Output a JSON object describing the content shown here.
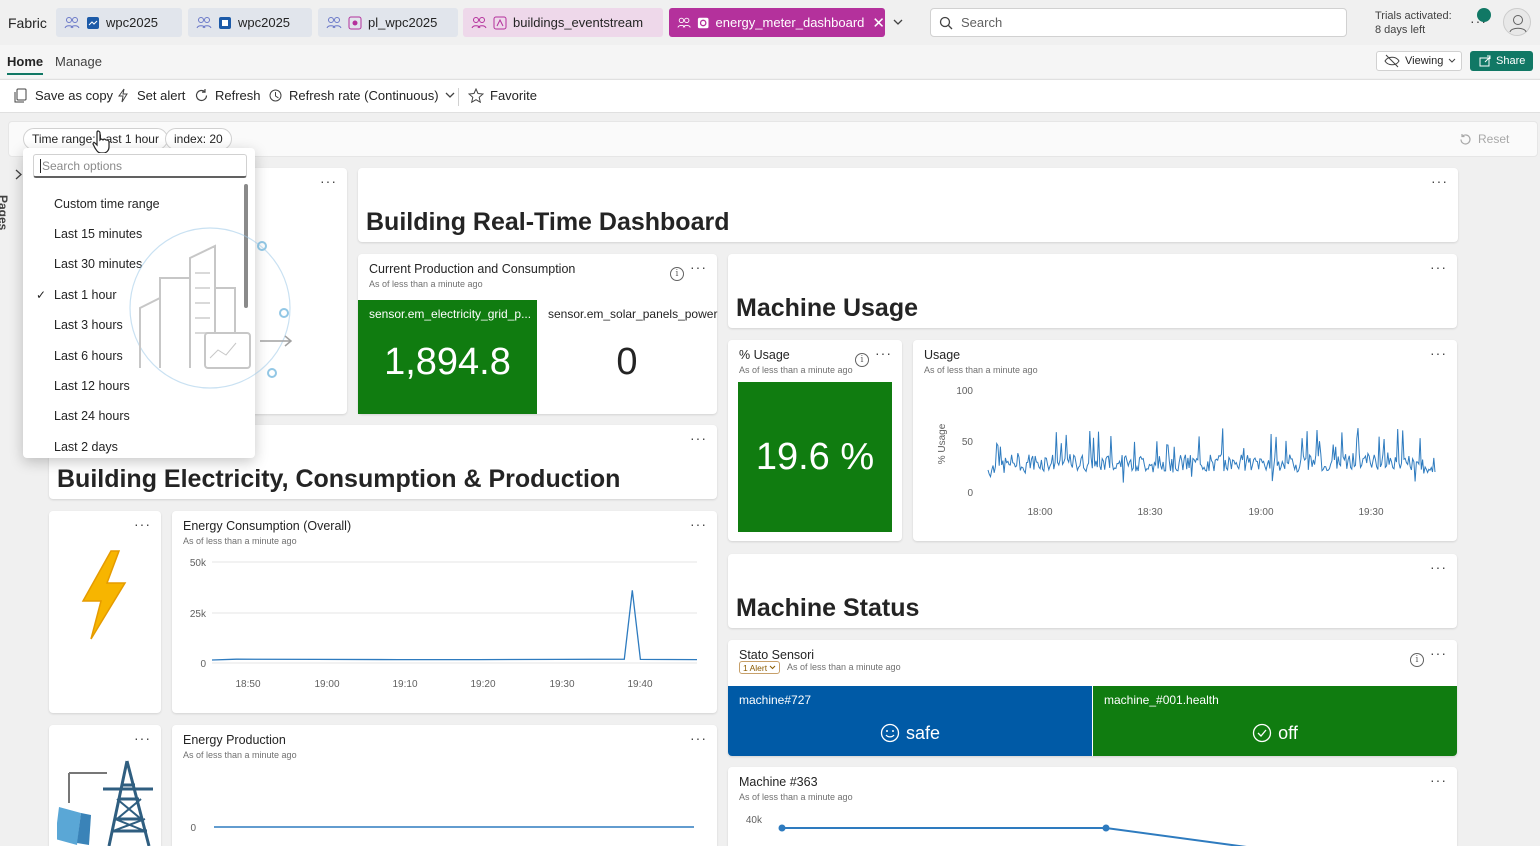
{
  "topbar": {
    "brand": "Fabric",
    "tabs": [
      {
        "label": "wpc2025"
      },
      {
        "label": "wpc2025"
      },
      {
        "label": "pl_wpc2025"
      },
      {
        "label": "buildings_eventstream"
      },
      {
        "label": "energy_meter_dashboard",
        "close": "✕"
      }
    ],
    "search_placeholder": "Search",
    "trial_line1": "Trials activated:",
    "trial_line2": "8 days left"
  },
  "menubar": {
    "home": "Home",
    "manage": "Manage",
    "viewing": "Viewing",
    "share": "Share"
  },
  "toolbar": {
    "save_as_copy": "Save as copy",
    "set_alert": "Set alert",
    "refresh": "Refresh",
    "refresh_rate": "Refresh rate (Continuous)",
    "favorite": "Favorite"
  },
  "filters": {
    "time_range": "Time range: Last 1 hour",
    "index": "index: 20",
    "reset": "Reset"
  },
  "pages_label": "Pages",
  "dropdown": {
    "search_placeholder": "Search options",
    "options": [
      "Custom time range",
      "Last 15 minutes",
      "Last 30 minutes",
      "Last 1 hour",
      "Last 3 hours",
      "Last 6 hours",
      "Last 12 hours",
      "Last 24 hours",
      "Last 2 days"
    ],
    "selected": "Last 1 hour",
    "checkmark": "✓"
  },
  "headers": {
    "building_realtime": "Building Real-Time Dashboard",
    "machine_usage": "Machine Usage",
    "building_electricity": "Building Electricity, Consumption & Production",
    "machine_status": "Machine Status"
  },
  "current_production": {
    "title": "Current Production and Consumption",
    "subtitle": "As of less than a minute ago",
    "tile1_label": "sensor.em_electricity_grid_p...",
    "tile1_value": "1,894.8",
    "tile2_label": "sensor.em_solar_panels_power",
    "tile2_value": "0"
  },
  "pct_usage": {
    "title": "% Usage",
    "subtitle": "As of less than a minute ago",
    "value": "19.6 %"
  },
  "usage_chart": {
    "title": "Usage",
    "subtitle": "As of less than a minute ago",
    "ylabel": "% Usage",
    "yticks": [
      "100",
      "50",
      "0"
    ],
    "xticks": [
      "18:00",
      "18:30",
      "19:00",
      "19:30"
    ]
  },
  "energy_consumption": {
    "title": "Energy Consumption (Overall)",
    "subtitle": "As of less than a minute ago",
    "yticks": [
      "50k",
      "25k",
      "0"
    ],
    "xticks": [
      "18:50",
      "19:00",
      "19:10",
      "19:20",
      "19:30",
      "19:40"
    ]
  },
  "energy_production": {
    "title": "Energy Production",
    "subtitle": "As of less than a minute ago",
    "yticks": [
      "0"
    ]
  },
  "stato_sensori": {
    "title": "Stato Sensori",
    "alert": "1 Alert",
    "subtitle": "As of less than a minute ago",
    "tile1_label": "machine#727",
    "tile1_value": "safe",
    "tile2_label": "machine_#001.health",
    "tile2_value": "off"
  },
  "machine363": {
    "title": "Machine #363",
    "subtitle": "As of less than a minute ago",
    "yticks": [
      "40k"
    ]
  },
  "colors": {
    "green_tile": "#107c10",
    "blue_tile": "#005aa6",
    "active_tab": "#b4319c",
    "share": "#117865",
    "line": "#2e7bbf"
  },
  "chart_data": [
    {
      "type": "line",
      "title": "Usage",
      "ylabel": "% Usage",
      "ylim": [
        0,
        100
      ],
      "x": [
        "17:53",
        "18:00",
        "18:30",
        "19:00",
        "19:30",
        "19:43"
      ],
      "series": [
        {
          "values": [
            22,
            30,
            28,
            29,
            31,
            25
          ]
        }
      ]
    },
    {
      "type": "line",
      "title": "Energy Consumption (Overall)",
      "ylim": [
        0,
        50000
      ],
      "x": [
        "18:47",
        "18:50",
        "19:00",
        "19:10",
        "19:20",
        "19:30",
        "19:38",
        "19:39",
        "19:40",
        "19:47"
      ],
      "series": [
        {
          "values": [
            1500,
            1900,
            1800,
            1700,
            1700,
            1800,
            1900,
            36000,
            1800,
            1700
          ]
        }
      ]
    },
    {
      "type": "line",
      "title": "Energy Production",
      "x": [
        "18:47",
        "19:47"
      ],
      "series": [
        {
          "values": [
            0,
            0
          ]
        }
      ]
    },
    {
      "type": "line",
      "title": "Machine #363",
      "x": [
        "t1",
        "t2",
        "t3"
      ],
      "series": [
        {
          "values": [
            40000,
            40000,
            30000
          ]
        }
      ]
    }
  ]
}
